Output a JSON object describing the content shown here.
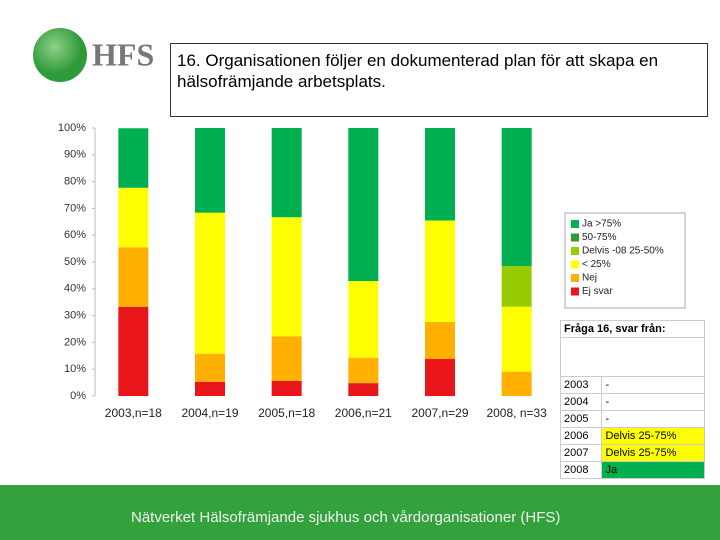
{
  "logo": "HFS",
  "title": "16. Organisationen följer en dokumenterad plan för att skapa en hälsofrämjande arbetsplats.",
  "chart_data": {
    "type": "stacked_bar",
    "categories": [
      "2003,n=18",
      "2004,n=19",
      "2005,n=18",
      "2006,n=21",
      "2007,n=29",
      "2008, n=33"
    ],
    "series": [
      {
        "name": "Ej svar",
        "color": "#e8161b",
        "values": [
          33.3,
          5.3,
          5.6,
          4.8,
          13.8,
          0
        ]
      },
      {
        "name": "Nej",
        "color": "#ffb000",
        "values": [
          22.2,
          10.5,
          16.7,
          9.5,
          13.8,
          9.1
        ]
      },
      {
        "name": "< 25%",
        "color": "#ffff00",
        "values": [
          22.2,
          52.6,
          44.4,
          28.6,
          37.9,
          24.2
        ]
      },
      {
        "name": "Delvis -08 25-50%",
        "color": "#99cc00",
        "values": [
          0,
          0,
          0,
          0,
          0,
          15.2
        ]
      },
      {
        "name": "50-75%",
        "color": "#339933",
        "values": [
          0,
          0,
          0,
          0,
          0,
          0
        ]
      },
      {
        "name": "Ja >75%",
        "color": "#00b050",
        "values": [
          22.2,
          31.6,
          33.3,
          57.1,
          34.5,
          51.5
        ]
      }
    ],
    "ylim": [
      0,
      100
    ],
    "yticks": [
      {
        "value": 0,
        "label": "0%"
      },
      {
        "value": 10,
        "label": "10%"
      },
      {
        "value": 20,
        "label": "20%"
      },
      {
        "value": 30,
        "label": "30%"
      },
      {
        "value": 40,
        "label": "40%"
      },
      {
        "value": 50,
        "label": "50%"
      },
      {
        "value": 60,
        "label": "60%"
      },
      {
        "value": 70,
        "label": "70%"
      },
      {
        "value": 80,
        "label": "80%"
      },
      {
        "value": 90,
        "label": "90%"
      },
      {
        "value": 100,
        "label": "100%"
      }
    ],
    "grid": false,
    "legend": "right"
  },
  "table": {
    "title": "Fråga 16, svar från:",
    "rows": [
      [
        "2003",
        "-"
      ],
      [
        "2004",
        "-"
      ],
      [
        "2005",
        "-"
      ],
      [
        "2006",
        "Delvis 25-75%"
      ],
      [
        "2007",
        "Delvis 25-75%"
      ],
      [
        "2008",
        "Ja"
      ]
    ]
  },
  "footer": "Nätverket Hälsofrämjande sjukhus och vårdorganisationer (HFS)"
}
